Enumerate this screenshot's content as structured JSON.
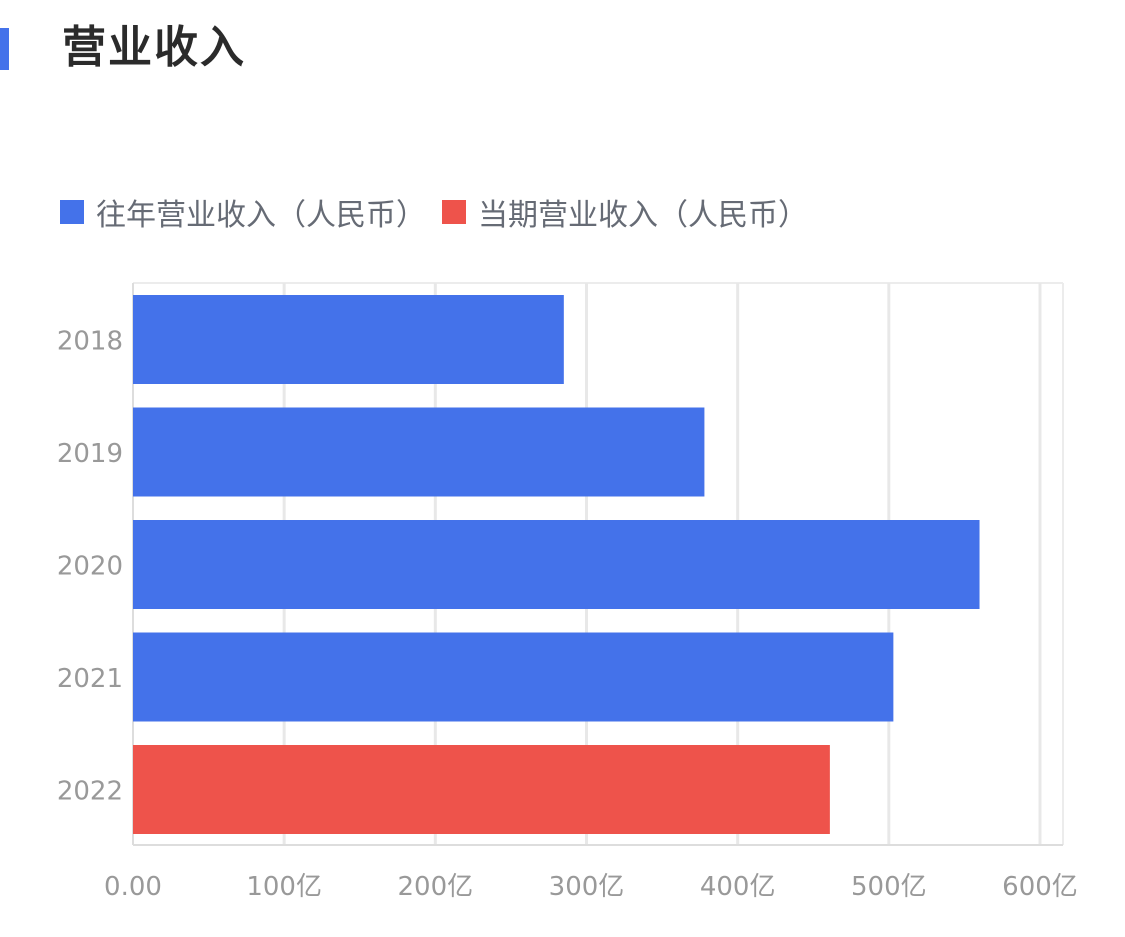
{
  "header": {
    "title": "营业收入"
  },
  "colors": {
    "accent": "#4472ea",
    "past": "#4472ea",
    "current": "#ee534b"
  },
  "legend": [
    {
      "label": "往年营业收入（人民币）",
      "color": "#4472ea"
    },
    {
      "label": "当期营业收入（人民币）",
      "color": "#ee534b"
    }
  ],
  "chart_data": {
    "type": "bar",
    "orientation": "horizontal",
    "categories": [
      "2018",
      "2019",
      "2020",
      "2021",
      "2022"
    ],
    "values": [
      285,
      378,
      560,
      503,
      461
    ],
    "bar_colors": [
      "#4472ea",
      "#4472ea",
      "#4472ea",
      "#4472ea",
      "#ee534b"
    ],
    "xlim": [
      0,
      600
    ],
    "x_ticks": [
      0,
      100,
      200,
      300,
      400,
      500,
      600
    ],
    "x_tick_labels": [
      "0.00",
      "100亿",
      "200亿",
      "300亿",
      "400亿",
      "500亿",
      "600亿"
    ],
    "grid": true,
    "legend_position": "top-left"
  }
}
